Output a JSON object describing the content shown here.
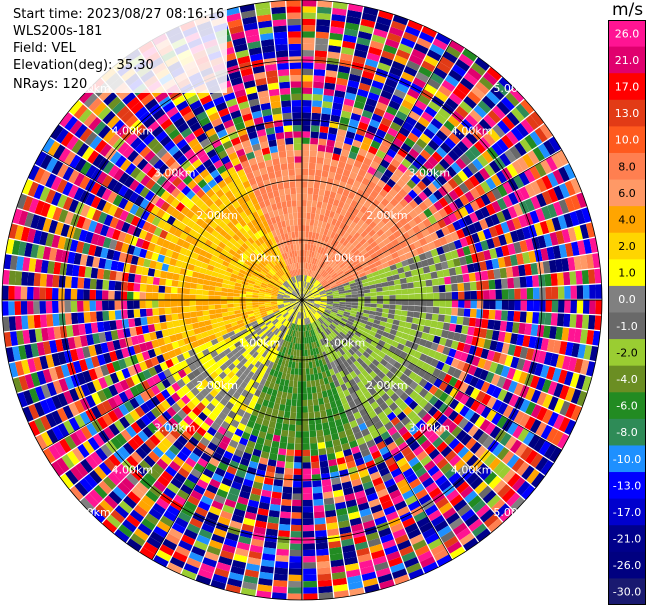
{
  "info": {
    "start_time": "Start time: 2023/08/27 08:16:16",
    "instrument": "WLS200s-181",
    "field": "Field: VEL",
    "elevation": "Elevation(deg): 35.30",
    "nrays": "NRays: 120"
  },
  "colorbar": {
    "unit": "m/s",
    "ticks": [
      "26.0",
      "21.0",
      "17.0",
      "13.0",
      "10.0",
      "8.0",
      "6.0",
      "4.0",
      "2.0",
      "1.0",
      "0.0",
      "-1.0",
      "-2.0",
      "-4.0",
      "-6.0",
      "-8.0",
      "-10.0",
      "-13.0",
      "-17.0",
      "-21.0",
      "-26.0",
      "-30.0"
    ],
    "colors": [
      "#ff1493",
      "#e0006e",
      "#ff0000",
      "#e23b16",
      "#ff5a1e",
      "#ff7f50",
      "#ff9966",
      "#ffa500",
      "#ffd500",
      "#ffff00",
      "#808080",
      "#696969",
      "#9acd32",
      "#6b8e23",
      "#228b22",
      "#2e8b57",
      "#1e90ff",
      "#0000ff",
      "#0000cd",
      "#00008b",
      "#000080",
      "#191970"
    ]
  },
  "chart_data": {
    "type": "heatmap",
    "subtype": "ppi-polar",
    "field": "VEL",
    "units": "m/s",
    "nrays": 120,
    "elevation_deg": 35.3,
    "range_ring_labels": [
      "1.00km",
      "2.00km",
      "3.00km",
      "4.00km",
      "5.00km"
    ],
    "range_rings_km": [
      1,
      2,
      3,
      4,
      5
    ],
    "max_range_km": 5.0,
    "clim": [
      -30,
      26
    ],
    "velocity_sectors": [
      {
        "direction": "north-east",
        "velocity": 6
      },
      {
        "direction": "west",
        "velocity": 2
      },
      {
        "direction": "south-east",
        "velocity": -2
      },
      {
        "direction": "south",
        "velocity": -6
      },
      {
        "direction": "south-west",
        "velocity": 0
      },
      {
        "direction": "east",
        "velocity": -2
      }
    ],
    "noise_outside_km": 2.6
  }
}
